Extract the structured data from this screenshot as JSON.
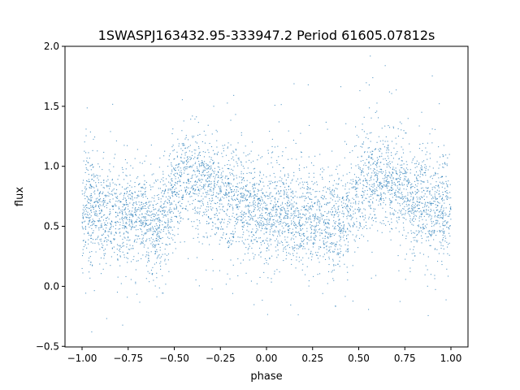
{
  "chart_data": {
    "type": "scatter",
    "title": "1SWASPJ163432.95-333947.2 Period 61605.07812s",
    "xlabel": "phase",
    "ylabel": "flux",
    "xlim": [
      -1.0925,
      1.0925
    ],
    "ylim": [
      -0.505,
      2.0
    ],
    "xticks": [
      -1.0,
      -0.75,
      -0.5,
      -0.25,
      0.0,
      0.25,
      0.5,
      0.75,
      1.0
    ],
    "xtick_labels": [
      "−1.00",
      "−0.75",
      "−0.50",
      "−0.25",
      "0.00",
      "0.25",
      "0.50",
      "0.75",
      "1.00"
    ],
    "yticks": [
      -0.5,
      0.0,
      0.5,
      1.0,
      1.5,
      2.0
    ],
    "ytick_labels": [
      "−0.5",
      "0.0",
      "0.5",
      "1.0",
      "1.5",
      "2.0"
    ],
    "grid": false,
    "marker_color": "#1f77b4",
    "series": [
      {
        "x": [
          -1.0,
          -0.9,
          -0.8,
          -0.7,
          -0.6,
          -0.55,
          -0.5,
          -0.45,
          -0.4,
          -0.3,
          -0.2,
          -0.1,
          0.0,
          0.1,
          0.2,
          0.3,
          0.4,
          0.45,
          0.5,
          0.55,
          0.6,
          0.7,
          0.8,
          0.9,
          1.0
        ],
        "y": [
          0.65,
          0.62,
          0.6,
          0.58,
          0.52,
          0.6,
          0.8,
          0.9,
          0.92,
          0.82,
          0.72,
          0.65,
          0.62,
          0.6,
          0.58,
          0.57,
          0.52,
          0.6,
          0.8,
          0.9,
          0.92,
          0.82,
          0.72,
          0.65,
          0.62
        ],
        "scatter_sd": 0.2
      }
    ]
  }
}
